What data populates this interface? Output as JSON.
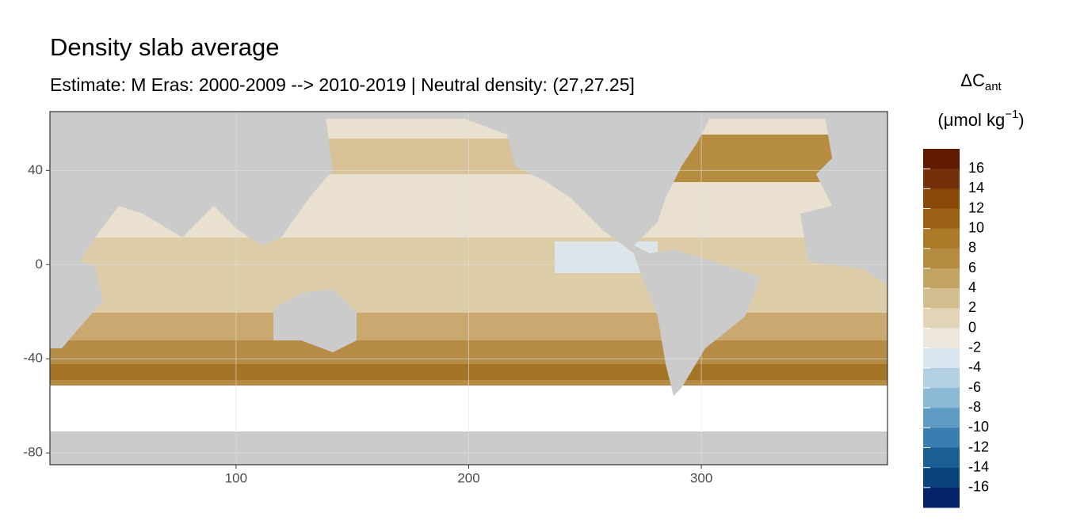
{
  "chart_data": {
    "type": "map",
    "title": "Density slab average",
    "subtitle": "Estimate: M Eras: 2000-2009 --> 2010-2019 | Neutral density: (27,27.25]",
    "xlim": [
      20,
      380
    ],
    "ylim": [
      -85,
      65
    ],
    "xticks": [
      100,
      200,
      300
    ],
    "yticks": [
      40,
      0,
      -40,
      -80
    ],
    "grid": true,
    "legend": {
      "title": {
        "main": "ΔC",
        "sub": "ant",
        "unit": "(μmol kg",
        "sup": "−1",
        "close": ")"
      },
      "breaks": [
        16,
        14,
        12,
        10,
        8,
        6,
        4,
        2,
        0,
        -2,
        -4,
        -6,
        -8,
        -10,
        -12,
        -14,
        -16
      ],
      "colors": [
        "#5f1a00",
        "#74300a",
        "#8a4809",
        "#9c6114",
        "#ab7a28",
        "#b68d40",
        "#c4a465",
        "#d3bc8e",
        "#e2d4b7",
        "#ece6dc",
        "#d9e6ee",
        "#b2cfe3",
        "#8bb9d6",
        "#5f9cc3",
        "#3a7db0",
        "#1c5e96",
        "#0b437e",
        "#04236a"
      ]
    }
  }
}
